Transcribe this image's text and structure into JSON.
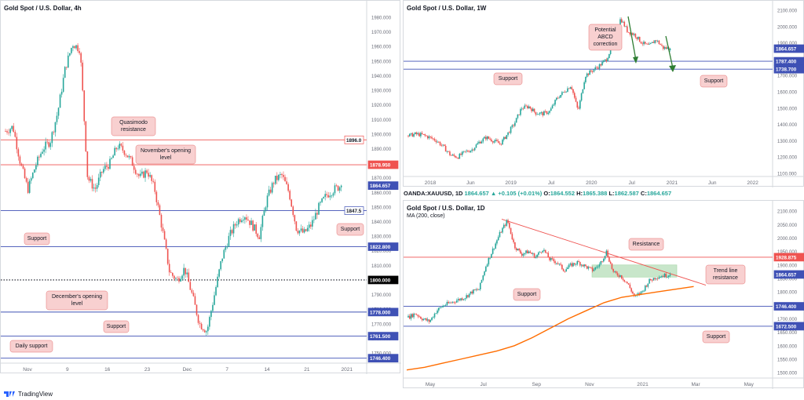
{
  "footer": {
    "brand": "TradingView"
  },
  "ohlc_bar": {
    "symbol": "OANDA:XAUUSD, 1D",
    "open_label": "O:",
    "open": "1864.552",
    "high_label": "H:",
    "high": "1865.388",
    "low_label": "L:",
    "low": "1862.587",
    "close_label": "C:",
    "close": "1864.657",
    "change": "▲ +0.105 (+0.01%)",
    "last": "1864.657"
  },
  "colors": {
    "bull": "#26a69a",
    "bear": "#ef5350",
    "support": "#3f51b5",
    "resistance": "#ef5350",
    "ma": "#ff6d00",
    "zone": "#a5d6a7",
    "callout_bg": "#f8d0d0"
  },
  "chart_data": [
    {
      "type": "candlestick",
      "title": "Gold Spot / U.S. Dollar, 4h",
      "x_ticks": [
        "Nov",
        "9",
        "16",
        "23",
        "Dec",
        "7",
        "14",
        "21",
        "2021"
      ],
      "y_ticks": [
        "1980.000",
        "1970.000",
        "1960.000",
        "1950.000",
        "1940.000",
        "1930.000",
        "1920.000",
        "1910.000",
        "1900.000",
        "1890.000",
        "1880.000",
        "1870.000",
        "1860.000",
        "1850.000",
        "1840.000",
        "1830.000",
        "1820.000",
        "1810.000",
        "1800.000",
        "1790.000",
        "1780.000",
        "1770.000",
        "1760.000",
        "1750.000"
      ],
      "ylim": [
        1743,
        1987
      ],
      "close_path": [
        1902,
        1905,
        1880,
        1862,
        1878,
        1890,
        1895,
        1915,
        1945,
        1962,
        1958,
        1870,
        1862,
        1875,
        1880,
        1892,
        1888,
        1880,
        1870,
        1875,
        1862,
        1835,
        1805,
        1800,
        1808,
        1790,
        1770,
        1765,
        1790,
        1815,
        1830,
        1840,
        1845,
        1838,
        1830,
        1855,
        1868,
        1872,
        1860,
        1835,
        1832,
        1838,
        1850,
        1858,
        1862,
        1864.657
      ],
      "levels": [
        {
          "value": 1896.0,
          "label": "1896.0",
          "color": "#ef5350",
          "style": "solid",
          "tag": "outline"
        },
        {
          "value": 1878.95,
          "label": "1878.950",
          "color": "#ef5350",
          "style": "solid",
          "tag": "fill"
        },
        {
          "value": 1864.657,
          "label": "1864.657",
          "color": "#3f51b5",
          "style": "none",
          "tag": "fill"
        },
        {
          "value": 1847.5,
          "label": "1847.5",
          "color": "#3f51b5",
          "style": "solid",
          "tag": "outline"
        },
        {
          "value": 1822.8,
          "label": "1822.800",
          "color": "#3f51b5",
          "style": "solid",
          "tag": "fill"
        },
        {
          "value": 1800.0,
          "label": "1800.000",
          "color": "#131722",
          "style": "dotted",
          "tag": "black"
        },
        {
          "value": 1778.0,
          "label": "1778.000",
          "color": "#3f51b5",
          "style": "solid",
          "tag": "fill"
        },
        {
          "value": 1761.5,
          "label": "1761.500",
          "color": "#3f51b5",
          "style": "solid",
          "tag": "fill"
        },
        {
          "value": 1746.4,
          "label": "1746.400",
          "color": "#3f51b5",
          "style": "solid",
          "tag": "fill"
        }
      ],
      "annotations": [
        "Quasimodo resistance",
        "November's opening level",
        "Support",
        "Support",
        "December's opening level",
        "Support",
        "Daily support"
      ]
    },
    {
      "type": "candlestick",
      "title": "Gold Spot / U.S. Dollar, 1W",
      "x_ticks": [
        "2018",
        "Jun",
        "2019",
        "Jul",
        "2020",
        "Jul",
        "2021",
        "Jun",
        "2022"
      ],
      "y_ticks": [
        "2100.000",
        "2000.000",
        "1900.000",
        "1800.000",
        "1700.000",
        "1600.000",
        "1500.000",
        "1400.000",
        "1300.000",
        "1200.000",
        "1100.000"
      ],
      "ylim": [
        1080,
        2120
      ],
      "close_path": [
        1330,
        1340,
        1335,
        1320,
        1300,
        1260,
        1210,
        1200,
        1230,
        1245,
        1290,
        1320,
        1300,
        1280,
        1340,
        1405,
        1500,
        1510,
        1470,
        1465,
        1480,
        1560,
        1600,
        1640,
        1480,
        1700,
        1730,
        1760,
        1800,
        1900,
        2050,
        1970,
        1950,
        1900,
        1880,
        1920,
        1870,
        1864.657
      ],
      "levels": [
        {
          "value": 1864.657,
          "label": "1864.657",
          "color": "#3f51b5",
          "style": "none",
          "tag": "fill"
        },
        {
          "value": 1787.4,
          "label": "1787.400",
          "color": "#3f51b5",
          "style": "solid",
          "tag": "fill"
        },
        {
          "value": 1738.7,
          "label": "1738.700",
          "color": "#3f51b5",
          "style": "solid",
          "tag": "fill"
        }
      ],
      "annotations": [
        "Potential ABCD correction",
        "Support",
        "Support"
      ]
    },
    {
      "type": "candlestick",
      "title": "Gold Spot / U.S. Dollar, 1D",
      "legend": "MA (200, close)",
      "x_ticks": [
        "May",
        "Jul",
        "Sep",
        "Nov",
        "2021",
        "Mar",
        "May"
      ],
      "y_ticks": [
        "2100.000",
        "2050.000",
        "2000.000",
        "1950.000",
        "1900.000",
        "1850.000",
        "1800.000",
        "1750.000",
        "1700.000",
        "1650.000",
        "1600.000",
        "1550.000",
        "1500.000"
      ],
      "ylim": [
        1480,
        2115
      ],
      "close_path": [
        1705,
        1720,
        1700,
        1690,
        1730,
        1750,
        1760,
        1770,
        1780,
        1800,
        1810,
        1900,
        1960,
        2020,
        2065,
        1970,
        1940,
        1950,
        1930,
        1960,
        1920,
        1910,
        1880,
        1900,
        1910,
        1895,
        1880,
        1900,
        1950,
        1870,
        1860,
        1830,
        1780,
        1800,
        1840,
        1855,
        1860,
        1864.657
      ],
      "ma200": [
        1510,
        1520,
        1535,
        1550,
        1565,
        1580,
        1600,
        1630,
        1665,
        1700,
        1730,
        1760,
        1780,
        1790,
        1800,
        1810,
        1820
      ],
      "levels": [
        {
          "value": 1928.875,
          "label": "1928.875",
          "color": "#ef5350",
          "style": "solid",
          "tag": "fill"
        },
        {
          "value": 1864.657,
          "label": "1864.657",
          "color": "#3f51b5",
          "style": "none",
          "tag": "fill"
        },
        {
          "value": 1746.4,
          "label": "1746.400",
          "color": "#3f51b5",
          "style": "solid",
          "tag": "fill"
        },
        {
          "value": 1672.5,
          "label": "1672.500",
          "color": "#3f51b5",
          "style": "solid",
          "tag": "fill"
        }
      ],
      "annotations": [
        "Resistance",
        "Trend line resistance",
        "Support",
        "Support"
      ]
    }
  ]
}
